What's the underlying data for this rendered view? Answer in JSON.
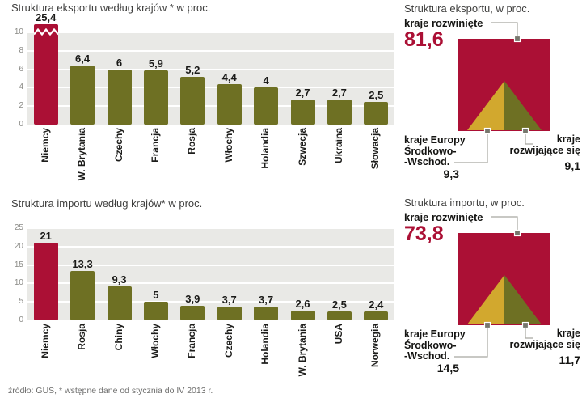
{
  "footer": {
    "source": "źródło: GUS, * wstępne dane od stycznia do IV 2013 r."
  },
  "colors": {
    "highlight": "#ab1035",
    "bar": "#6e7023",
    "gold": "#d2a82e",
    "plot_bg": "#e9e9e6"
  },
  "chart_data": [
    {
      "id": "export_bars",
      "type": "bar",
      "title": "Struktura eksportu według krajów * w proc.",
      "categories": [
        "Niemcy",
        "W. Brytania",
        "Czechy",
        "Francja",
        "Rosja",
        "Włochy",
        "Holandia",
        "Szwecja",
        "Ukraina",
        "Słowacja"
      ],
      "values": [
        25.4,
        6.4,
        6,
        5.9,
        5.2,
        4.4,
        4,
        2.7,
        2.7,
        2.5
      ],
      "value_labels": [
        "25,4",
        "6,4",
        "6",
        "5,9",
        "5,2",
        "4,4",
        "4",
        "2,7",
        "2,7",
        "2,5"
      ],
      "ylim": [
        0,
        10
      ],
      "yticks": [
        0,
        2,
        4,
        6,
        8,
        10
      ],
      "highlight_index": 0,
      "broken_bar_index": 0,
      "grid": true
    },
    {
      "id": "import_bars",
      "type": "bar",
      "title": "Struktura importu według krajów* w proc.",
      "categories": [
        "Niemcy",
        "Rosja",
        "Chiny",
        "Włochy",
        "Francja",
        "Czechy",
        "Holandia",
        "W. Brytania",
        "USA",
        "Norwegia"
      ],
      "values": [
        21,
        13.3,
        9.3,
        5,
        3.9,
        3.7,
        3.7,
        2.6,
        2.5,
        2.4
      ],
      "value_labels": [
        "21",
        "13,3",
        "9,3",
        "5",
        "3,9",
        "3,7",
        "3,7",
        "2,6",
        "2,5",
        "2,4"
      ],
      "ylim": [
        0,
        25
      ],
      "yticks": [
        0,
        5,
        10,
        15,
        20,
        25
      ],
      "highlight_index": 0,
      "broken_bar_index": -1,
      "grid": true
    },
    {
      "id": "export_mix",
      "type": "pie",
      "title": "Struktura eksportu, w proc.",
      "segments": [
        {
          "label": "kraje rozwinięte",
          "value": 81.6,
          "value_label": "81,6",
          "color_key": "highlight"
        },
        {
          "label": "kraje Europy Środkowo--Wschod.",
          "label_lines": [
            "kraje Europy",
            "Środkowo-",
            "-Wschod."
          ],
          "value": 9.3,
          "value_label": "9,3",
          "color_key": "gold"
        },
        {
          "label": "kraje rozwijające się",
          "label_lines": [
            "kraje",
            "rozwijające się"
          ],
          "value": 9.1,
          "value_label": "9,1",
          "color_key": "bar"
        }
      ]
    },
    {
      "id": "import_mix",
      "type": "pie",
      "title": "Struktura importu, w proc.",
      "segments": [
        {
          "label": "kraje rozwinięte",
          "value": 73.8,
          "value_label": "73,8",
          "color_key": "highlight"
        },
        {
          "label": "kraje Europy Środkowo--Wschod.",
          "label_lines": [
            "kraje Europy",
            "Środkowo-",
            "-Wschod."
          ],
          "value": 14.5,
          "value_label": "14,5",
          "color_key": "gold"
        },
        {
          "label": "kraje rozwijające się",
          "label_lines": [
            "kraje",
            "rozwijające się"
          ],
          "value": 11.7,
          "value_label": "11,7",
          "color_key": "bar"
        }
      ]
    }
  ]
}
